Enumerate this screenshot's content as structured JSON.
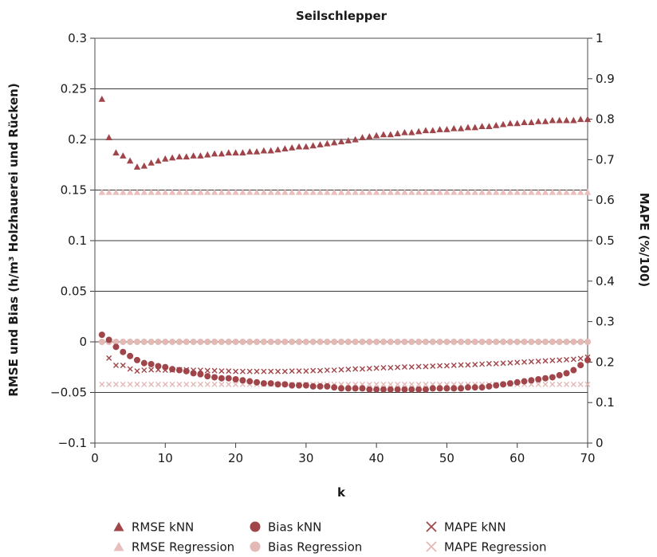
{
  "chart_data": {
    "type": "scatter",
    "title": "Seilschlepper",
    "xlabel": "k",
    "ylabel": "RMSE und Bias (h/m³ Holzhauerei und Rücken)",
    "y2label": "MAPE (%/100)",
    "xlim": [
      0,
      70
    ],
    "ylim": [
      -0.1,
      0.3
    ],
    "y2lim": [
      0,
      1
    ],
    "xticks": [
      0,
      10,
      20,
      30,
      40,
      50,
      60,
      70
    ],
    "yticks": [
      -0.1,
      -0.05,
      0,
      0.05,
      0.1,
      0.15,
      0.2,
      0.25,
      0.3
    ],
    "ytick_labels": [
      "−0.1",
      "−0.05",
      "0",
      "0.05",
      "0.1",
      "0.15",
      "0.2",
      "0.25",
      "0.3"
    ],
    "y2ticks": [
      0,
      0.1,
      0.2,
      0.3,
      0.4,
      0.5,
      0.6,
      0.7,
      0.8,
      0.9,
      1
    ],
    "y2tick_labels": [
      "0",
      "0.1",
      "0.2",
      "0.3",
      "0.4",
      "0.5",
      "0.6",
      "0.7",
      "0.8",
      "0.9",
      "1"
    ],
    "grid": "horizontal",
    "legend_position": "bottom",
    "series": [
      {
        "name": "RMSE kNN",
        "axis": "left",
        "marker": "triangle",
        "color": "#a0454a",
        "x": [
          1,
          2,
          3,
          4,
          5,
          6,
          7,
          8,
          9,
          10,
          11,
          12,
          13,
          14,
          15,
          16,
          17,
          18,
          19,
          20,
          21,
          22,
          23,
          24,
          25,
          26,
          27,
          28,
          29,
          30,
          31,
          32,
          33,
          34,
          35,
          36,
          37,
          38,
          39,
          40,
          41,
          42,
          43,
          44,
          45,
          46,
          47,
          48,
          49,
          50,
          51,
          52,
          53,
          54,
          55,
          56,
          57,
          58,
          59,
          60,
          61,
          62,
          63,
          64,
          65,
          66,
          67,
          68,
          69,
          70
        ],
        "y": [
          0.24,
          0.202,
          0.187,
          0.184,
          0.179,
          0.173,
          0.174,
          0.177,
          0.179,
          0.181,
          0.182,
          0.183,
          0.183,
          0.184,
          0.184,
          0.185,
          0.186,
          0.186,
          0.187,
          0.187,
          0.187,
          0.188,
          0.188,
          0.189,
          0.189,
          0.19,
          0.191,
          0.192,
          0.193,
          0.193,
          0.194,
          0.195,
          0.196,
          0.197,
          0.198,
          0.199,
          0.2,
          0.202,
          0.203,
          0.204,
          0.205,
          0.205,
          0.206,
          0.207,
          0.207,
          0.208,
          0.209,
          0.209,
          0.21,
          0.21,
          0.211,
          0.211,
          0.212,
          0.212,
          0.213,
          0.213,
          0.214,
          0.215,
          0.216,
          0.216,
          0.217,
          0.217,
          0.218,
          0.218,
          0.219,
          0.219,
          0.219,
          0.219,
          0.22,
          0.22
        ]
      },
      {
        "name": "RMSE Regression",
        "axis": "left",
        "marker": "triangle",
        "color": "#e8bfbd",
        "x": [
          1,
          2,
          3,
          4,
          5,
          6,
          7,
          8,
          9,
          10,
          11,
          12,
          13,
          14,
          15,
          16,
          17,
          18,
          19,
          20,
          21,
          22,
          23,
          24,
          25,
          26,
          27,
          28,
          29,
          30,
          31,
          32,
          33,
          34,
          35,
          36,
          37,
          38,
          39,
          40,
          41,
          42,
          43,
          44,
          45,
          46,
          47,
          48,
          49,
          50,
          51,
          52,
          53,
          54,
          55,
          56,
          57,
          58,
          59,
          60,
          61,
          62,
          63,
          64,
          65,
          66,
          67,
          68,
          69,
          70
        ],
        "y": [
          0.148,
          0.148,
          0.148,
          0.148,
          0.148,
          0.148,
          0.148,
          0.148,
          0.148,
          0.148,
          0.148,
          0.148,
          0.148,
          0.148,
          0.148,
          0.148,
          0.148,
          0.148,
          0.148,
          0.148,
          0.148,
          0.148,
          0.148,
          0.148,
          0.148,
          0.148,
          0.148,
          0.148,
          0.148,
          0.148,
          0.148,
          0.148,
          0.148,
          0.148,
          0.148,
          0.148,
          0.148,
          0.148,
          0.148,
          0.148,
          0.148,
          0.148,
          0.148,
          0.148,
          0.148,
          0.148,
          0.148,
          0.148,
          0.148,
          0.148,
          0.148,
          0.148,
          0.148,
          0.148,
          0.148,
          0.148,
          0.148,
          0.148,
          0.148,
          0.148,
          0.148,
          0.148,
          0.148,
          0.148,
          0.148,
          0.148,
          0.148,
          0.148,
          0.148,
          0.148
        ]
      },
      {
        "name": "Bias kNN",
        "axis": "left",
        "marker": "circle",
        "color": "#a0454a",
        "x": [
          1,
          2,
          3,
          4,
          5,
          6,
          7,
          8,
          9,
          10,
          11,
          12,
          13,
          14,
          15,
          16,
          17,
          18,
          19,
          20,
          21,
          22,
          23,
          24,
          25,
          26,
          27,
          28,
          29,
          30,
          31,
          32,
          33,
          34,
          35,
          36,
          37,
          38,
          39,
          40,
          41,
          42,
          43,
          44,
          45,
          46,
          47,
          48,
          49,
          50,
          51,
          52,
          53,
          54,
          55,
          56,
          57,
          58,
          59,
          60,
          61,
          62,
          63,
          64,
          65,
          66,
          67,
          68,
          69,
          70
        ],
        "y": [
          0.007,
          0.002,
          -0.005,
          -0.01,
          -0.014,
          -0.018,
          -0.021,
          -0.022,
          -0.024,
          -0.025,
          -0.027,
          -0.028,
          -0.029,
          -0.031,
          -0.032,
          -0.034,
          -0.035,
          -0.036,
          -0.036,
          -0.037,
          -0.038,
          -0.039,
          -0.04,
          -0.041,
          -0.041,
          -0.042,
          -0.042,
          -0.043,
          -0.043,
          -0.043,
          -0.044,
          -0.044,
          -0.044,
          -0.045,
          -0.046,
          -0.046,
          -0.046,
          -0.046,
          -0.047,
          -0.047,
          -0.047,
          -0.047,
          -0.047,
          -0.047,
          -0.047,
          -0.047,
          -0.047,
          -0.046,
          -0.046,
          -0.046,
          -0.046,
          -0.046,
          -0.045,
          -0.045,
          -0.045,
          -0.044,
          -0.043,
          -0.042,
          -0.041,
          -0.04,
          -0.039,
          -0.038,
          -0.037,
          -0.036,
          -0.035,
          -0.033,
          -0.031,
          -0.028,
          -0.023,
          -0.018
        ]
      },
      {
        "name": "Bias Regression",
        "axis": "left",
        "marker": "circle",
        "color": "#e3b9b6",
        "x": [
          1,
          2,
          3,
          4,
          5,
          6,
          7,
          8,
          9,
          10,
          11,
          12,
          13,
          14,
          15,
          16,
          17,
          18,
          19,
          20,
          21,
          22,
          23,
          24,
          25,
          26,
          27,
          28,
          29,
          30,
          31,
          32,
          33,
          34,
          35,
          36,
          37,
          38,
          39,
          40,
          41,
          42,
          43,
          44,
          45,
          46,
          47,
          48,
          49,
          50,
          51,
          52,
          53,
          54,
          55,
          56,
          57,
          58,
          59,
          60,
          61,
          62,
          63,
          64,
          65,
          66,
          67,
          68,
          69,
          70
        ],
        "y": [
          0,
          0,
          0,
          0,
          0,
          0,
          0,
          0,
          0,
          0,
          0,
          0,
          0,
          0,
          0,
          0,
          0,
          0,
          0,
          0,
          0,
          0,
          0,
          0,
          0,
          0,
          0,
          0,
          0,
          0,
          0,
          0,
          0,
          0,
          0,
          0,
          0,
          0,
          0,
          0,
          0,
          0,
          0,
          0,
          0,
          0,
          0,
          0,
          0,
          0,
          0,
          0,
          0,
          0,
          0,
          0,
          0,
          0,
          0,
          0,
          0,
          0,
          0,
          0,
          0,
          0,
          0,
          0,
          0,
          0
        ]
      },
      {
        "name": "MAPE kNN",
        "axis": "right",
        "marker": "x",
        "color": "#a0454a",
        "x": [
          2,
          3,
          4,
          5,
          6,
          7,
          8,
          9,
          10,
          11,
          12,
          13,
          14,
          15,
          16,
          17,
          18,
          19,
          20,
          21,
          22,
          23,
          24,
          25,
          26,
          27,
          28,
          29,
          30,
          31,
          32,
          33,
          34,
          35,
          36,
          37,
          38,
          39,
          40,
          41,
          42,
          43,
          44,
          45,
          46,
          47,
          48,
          49,
          50,
          51,
          52,
          53,
          54,
          55,
          56,
          57,
          58,
          59,
          60,
          61,
          62,
          63,
          64,
          65,
          66,
          67,
          68,
          69,
          70
        ],
        "y": [
          0.21,
          0.192,
          0.192,
          0.183,
          0.178,
          0.18,
          0.181,
          0.181,
          0.18,
          0.18,
          0.181,
          0.181,
          0.18,
          0.18,
          0.179,
          0.179,
          0.178,
          0.178,
          0.177,
          0.177,
          0.177,
          0.177,
          0.177,
          0.177,
          0.177,
          0.177,
          0.178,
          0.178,
          0.178,
          0.179,
          0.179,
          0.18,
          0.18,
          0.181,
          0.182,
          0.183,
          0.183,
          0.184,
          0.185,
          0.186,
          0.186,
          0.187,
          0.188,
          0.188,
          0.189,
          0.189,
          0.19,
          0.191,
          0.191,
          0.192,
          0.193,
          0.193,
          0.194,
          0.195,
          0.196,
          0.196,
          0.197,
          0.198,
          0.199,
          0.2,
          0.201,
          0.202,
          0.203,
          0.204,
          0.205,
          0.206,
          0.207,
          0.209,
          0.212
        ]
      },
      {
        "name": "MAPE Regression",
        "axis": "right",
        "marker": "x",
        "color": "#e3b9b6",
        "x": [
          1,
          2,
          3,
          4,
          5,
          6,
          7,
          8,
          9,
          10,
          11,
          12,
          13,
          14,
          15,
          16,
          17,
          18,
          19,
          20,
          21,
          22,
          23,
          24,
          25,
          26,
          27,
          28,
          29,
          30,
          31,
          32,
          33,
          34,
          35,
          36,
          37,
          38,
          39,
          40,
          41,
          42,
          43,
          44,
          45,
          46,
          47,
          48,
          49,
          50,
          51,
          52,
          53,
          54,
          55,
          56,
          57,
          58,
          59,
          60,
          61,
          62,
          63,
          64,
          65,
          66,
          67,
          68,
          69,
          70
        ],
        "y": [
          0.145,
          0.145,
          0.145,
          0.145,
          0.145,
          0.145,
          0.145,
          0.145,
          0.145,
          0.145,
          0.145,
          0.145,
          0.145,
          0.145,
          0.145,
          0.145,
          0.145,
          0.145,
          0.145,
          0.145,
          0.145,
          0.145,
          0.145,
          0.145,
          0.145,
          0.145,
          0.145,
          0.145,
          0.145,
          0.145,
          0.145,
          0.145,
          0.145,
          0.145,
          0.145,
          0.145,
          0.145,
          0.145,
          0.145,
          0.145,
          0.145,
          0.145,
          0.145,
          0.145,
          0.145,
          0.145,
          0.145,
          0.145,
          0.145,
          0.145,
          0.145,
          0.145,
          0.145,
          0.145,
          0.145,
          0.145,
          0.145,
          0.145,
          0.145,
          0.145,
          0.145,
          0.145,
          0.145,
          0.145,
          0.145,
          0.145,
          0.145,
          0.145,
          0.145,
          0.145
        ]
      }
    ],
    "legend": [
      {
        "series": 0,
        "label": "RMSE kNN"
      },
      {
        "series": 2,
        "label": "Bias kNN"
      },
      {
        "series": 4,
        "label": "MAPE kNN"
      },
      {
        "series": 1,
        "label": "RMSE Regression"
      },
      {
        "series": 3,
        "label": "Bias Regression"
      },
      {
        "series": 5,
        "label": "MAPE Regression"
      }
    ]
  }
}
